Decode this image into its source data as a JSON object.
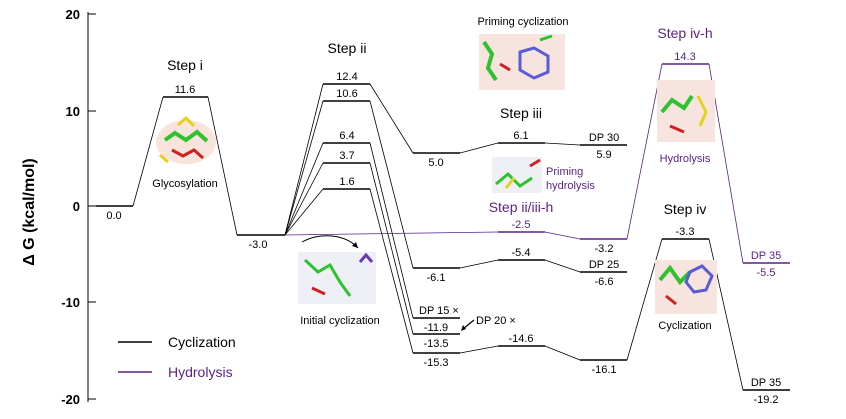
{
  "colors": {
    "cyclization": "#000000",
    "hydrolysis": "#5b1f86"
  },
  "axis": {
    "ylabel": "Δ G (kcal/mol)",
    "ylim": [
      -20,
      20
    ],
    "ticks": [
      "20",
      "10",
      "0",
      "-10",
      "-20"
    ]
  },
  "legend": [
    {
      "label": "Cyclization",
      "color": "#000000"
    },
    {
      "label": "Hydrolysis",
      "color": "#5b1f86"
    }
  ],
  "steps": {
    "step_i": "Step i",
    "step_ii": "Step ii",
    "step_iii": "Step iii",
    "step_iv": "Step iv",
    "step_ii_iii_h": "Step ii/iii-h",
    "step_iv_h": "Step iv-h"
  },
  "captions": {
    "glycosylation": "Glycosylation",
    "initial_cyclization": "Initial cyclization",
    "priming_cyclization": "Priming cyclization",
    "priming_hydrolysis_1": "Priming",
    "priming_hydrolysis_2": "hydrolysis",
    "hydrolysis": "Hydrolysis",
    "cyclization": "Cyclization"
  },
  "dp_labels": {
    "dp15": "DP 15 ×",
    "dp20": "DP 20 ×",
    "dp25": "DP 25",
    "dp30": "DP 30",
    "dp35_top": "DP 35",
    "dp35_bottom": "DP 35"
  },
  "levels": {
    "l0": "0.0",
    "l1": "11.6",
    "l2": "-3.0",
    "l3a": "12.4",
    "l3b": "10.6",
    "l3c": "6.4",
    "l3d": "3.7",
    "l3e": "1.6",
    "l4a": "5.0",
    "l4b": "-6.1",
    "l4c": "-11.9",
    "l4d": "-13.5",
    "l4e": "-15.3",
    "l5a": "6.1",
    "l5b": "-5.4",
    "l5c": "-14.6",
    "l5d": "-2.5",
    "l6a": "5.9",
    "l6b": "-6.6",
    "l6c": "-16.1",
    "l6d": "-3.2",
    "l7a": "-3.3",
    "l7b": "14.3",
    "l8a": "-19.2",
    "l8b": "-5.5"
  }
}
